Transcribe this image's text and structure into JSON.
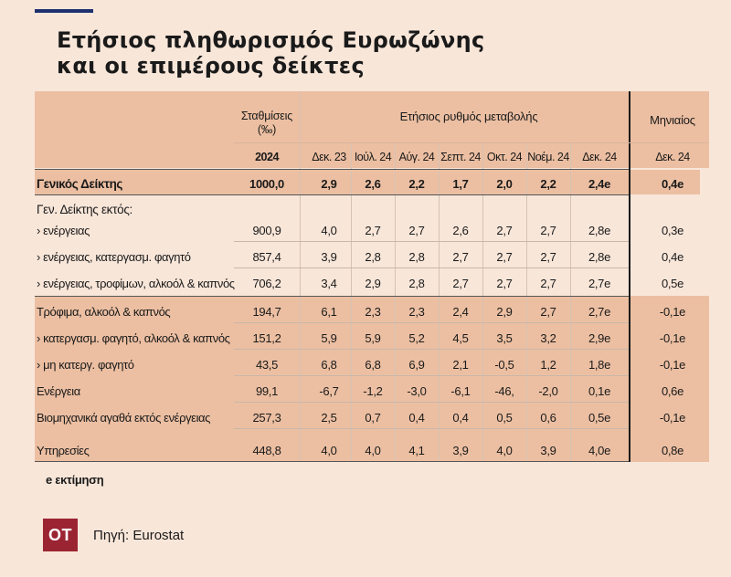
{
  "title": {
    "line1": "Ετήσιος πληθωρισμός Ευρωζώνης",
    "line2": "και οι επιμέρους δείκτες"
  },
  "header": {
    "weights": "Σταθμίσεις (‰)",
    "annual_change": "Ετήσιος ρυθμός μεταβολής",
    "monthly": "Μηνιαίος"
  },
  "subheader": {
    "weights_year": "2024",
    "months": [
      "Δεκ. 23",
      "Ιούλ. 24",
      "Αύγ. 24",
      "Σεπτ. 24",
      "Οκτ. 24",
      "Νοέμ. 24",
      "Δεκ. 24"
    ],
    "monthly_month": "Δεκ. 24"
  },
  "group_label": "Γεν. Δείκτης εκτός:",
  "rows": [
    {
      "label": "Γενικός Δείκτης",
      "weight": "1000,0",
      "values": [
        "2,9",
        "2,6",
        "2,2",
        "1,7",
        "2,0",
        "2,2",
        "2,4e"
      ],
      "monthly": "0,4e"
    },
    {
      "label": "› ενέργειας",
      "weight": "900,9",
      "values": [
        "4,0",
        "2,7",
        "2,7",
        "2,6",
        "2,7",
        "2,7",
        "2,8e"
      ],
      "monthly": "0,3e"
    },
    {
      "label": "› ενέργειας, κατεργασμ. φαγητό",
      "weight": "857,4",
      "values": [
        "3,9",
        "2,8",
        "2,8",
        "2,7",
        "2,7",
        "2,7",
        "2,8e"
      ],
      "monthly": "0,4e"
    },
    {
      "label": "› ενέργειας, τροφίμων, αλκοόλ & καπνός",
      "weight": "706,2",
      "values": [
        "3,4",
        "2,9",
        "2,8",
        "2,7",
        "2,7",
        "2,7",
        "2,7e"
      ],
      "monthly": "0,5e"
    },
    {
      "label": "Τρόφιμα, αλκοόλ & καπνός",
      "weight": "194,7",
      "values": [
        "6,1",
        "2,3",
        "2,3",
        "2,4",
        "2,9",
        "2,7",
        "2,7e"
      ],
      "monthly": "-0,1e"
    },
    {
      "label": "›  κατεργασμ. φαγητό, αλκοόλ & καπνός",
      "weight": "151,2",
      "values": [
        "5,9",
        "5,9",
        "5,2",
        "4,5",
        "3,5",
        "3,2",
        "2,9e"
      ],
      "monthly": "-0,1e"
    },
    {
      "label": "› μη κατεργ. φαγητό",
      "weight": "43,5",
      "values": [
        "6,8",
        "6,8",
        "6,9",
        "2,1",
        "-0,5",
        "1,2",
        "1,8e"
      ],
      "monthly": "-0,1e"
    },
    {
      "label": "Ενέργεια",
      "weight": "99,1",
      "values": [
        "-6,7",
        "-1,2",
        "-3,0",
        "-6,1",
        "-46,",
        "-2,0",
        "0,1e"
      ],
      "monthly": "0,6e"
    },
    {
      "label": "Βιομηχανικά αγαθά εκτός ενέργειας",
      "weight": "257,3",
      "values": [
        "2,5",
        "0,7",
        "0,4",
        "0,4",
        "0,5",
        "0,6",
        "0,5e"
      ],
      "monthly": "-0,1e"
    },
    {
      "label": "Υπηρεσίες",
      "weight": "448,8",
      "values": [
        "4,0",
        "4,0",
        "4,1",
        "3,9",
        "4,0",
        "3,9",
        "4,0e"
      ],
      "monthly": "0,8e"
    }
  ],
  "footnote": "e εκτίμηση",
  "logo": "OT",
  "source": "Πηγή: Eurostat",
  "colors": {
    "background": "#f8e6d9",
    "band": "#ecbfa2",
    "logo": "#9b2433",
    "accent_bar": "#1f3070"
  }
}
